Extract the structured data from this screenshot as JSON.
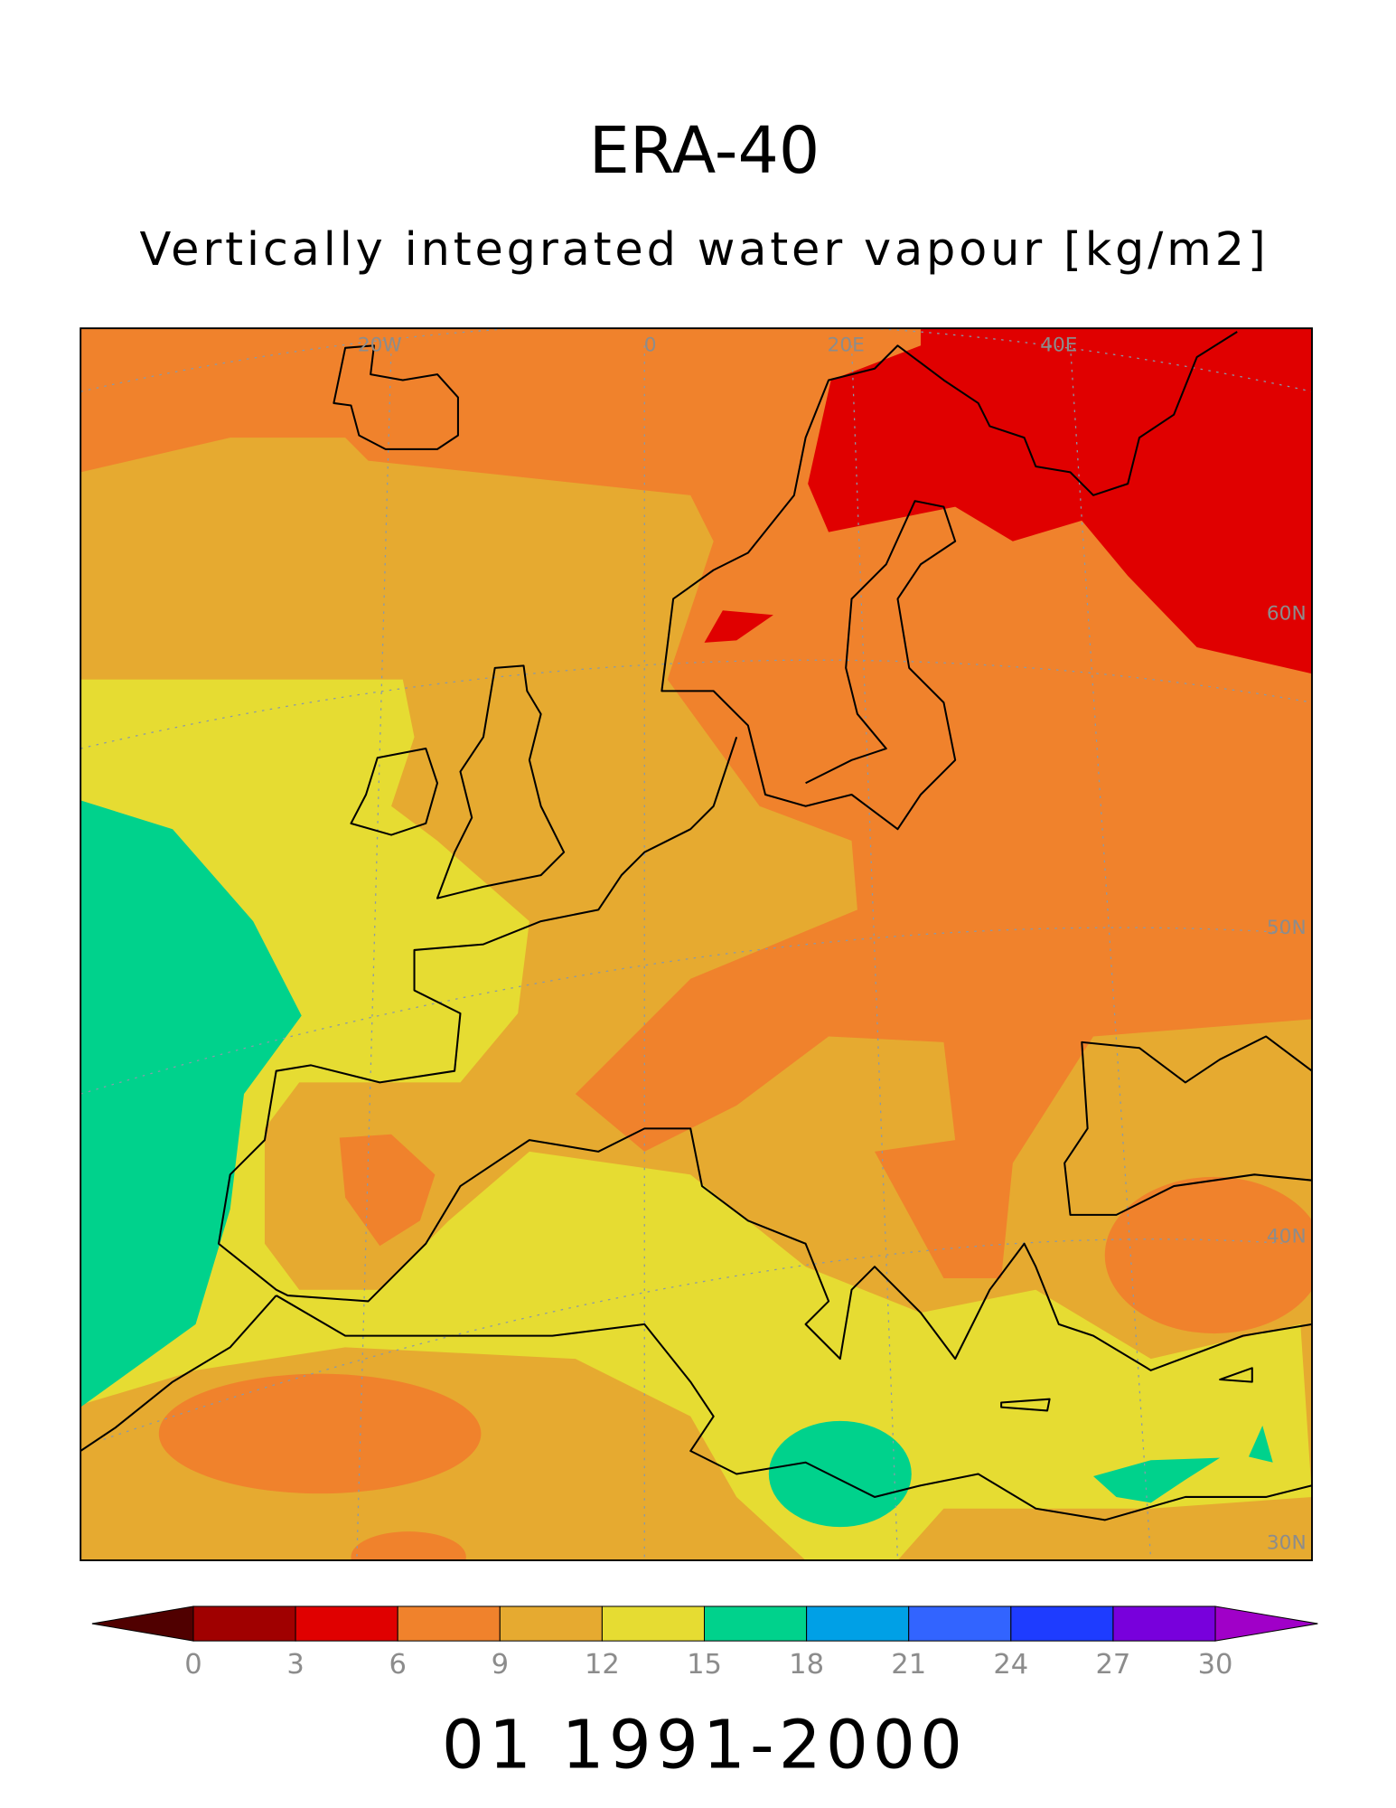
{
  "header": {
    "title": "ERA-40",
    "subtitle": "Vertically integrated water vapour [kg/m2]"
  },
  "map": {
    "lon_labels": [
      "20W",
      "0",
      "20E",
      "40E"
    ],
    "lat_labels": [
      "60N",
      "50N",
      "40N",
      "30N"
    ]
  },
  "colorbar": {
    "ticks": [
      0,
      3,
      6,
      9,
      12,
      15,
      18,
      21,
      24,
      27,
      30
    ],
    "colors": [
      "#500000",
      "#a00000",
      "#e00000",
      "#f0822c",
      "#e6aa30",
      "#e6dc32",
      "#00d28c",
      "#00a0e6",
      "#3264ff",
      "#1e3cff",
      "#7800dc",
      "#a000c8"
    ]
  },
  "footer": {
    "period": "01 1991-2000"
  }
}
